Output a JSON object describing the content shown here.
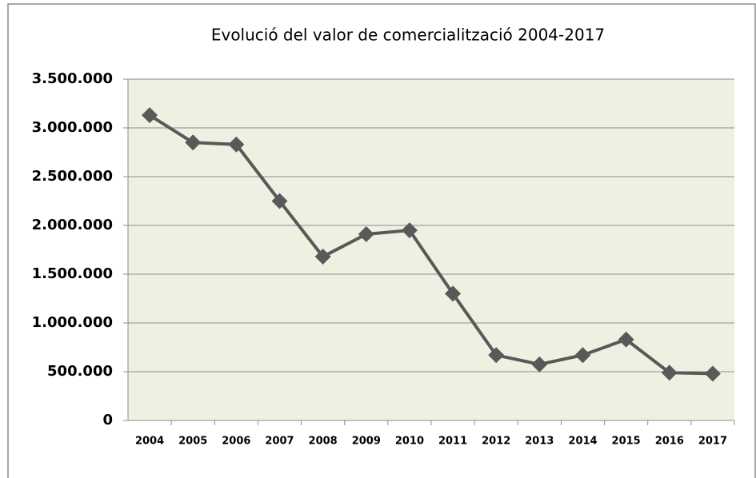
{
  "chart_data": {
    "type": "line",
    "title": "Evolució del valor de comercialització 2004-2017",
    "categories": [
      "2004",
      "2005",
      "2006",
      "2007",
      "2008",
      "2009",
      "2010",
      "2011",
      "2012",
      "2013",
      "2014",
      "2015",
      "2016",
      "2017"
    ],
    "series": [
      {
        "color": "#595959",
        "values": [
          3130000,
          2850000,
          2830000,
          2250000,
          1680000,
          1910000,
          1950000,
          1300000,
          670000,
          575000,
          670000,
          830000,
          490000,
          480000
        ]
      }
    ],
    "ylim": [
      0,
      3500000
    ],
    "yticks": [
      0,
      {
        "value": 500000,
        "label": "500.000"
      },
      {
        "value": 1000000,
        "label": "1.000.000"
      },
      {
        "value": 1500000,
        "label": "1.500.000"
      },
      {
        "value": 2000000,
        "label": "2.000.000"
      },
      {
        "value": 2500000,
        "label": "2.500.000"
      },
      {
        "value": 3000000,
        "label": "3.000.000"
      },
      {
        "value": 3500000,
        "label": "3.500.000"
      }
    ],
    "grid": true,
    "plot_background": "#eef1e2"
  }
}
